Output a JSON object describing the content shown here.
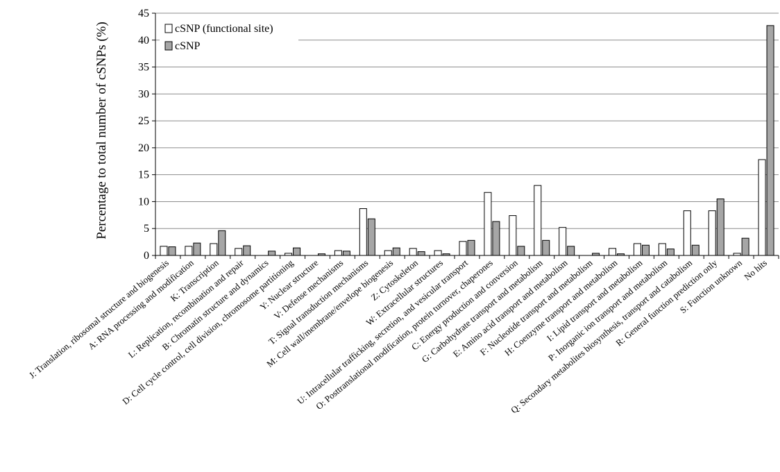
{
  "chart_data": {
    "type": "bar",
    "title": "",
    "xlabel": "",
    "ylabel": "Percentage to total number of cSNPs (%)",
    "ylim": [
      0,
      45
    ],
    "yticks": [
      0,
      5,
      10,
      15,
      20,
      25,
      30,
      35,
      40,
      45
    ],
    "grid": true,
    "legend_position": "top-left",
    "categories": [
      "J: Translation, ribosomal structure and biogenesis",
      "A: RNA processing and modification",
      "K: Transcription",
      "L: Replication, recombination and repair",
      "B: Chromatin structure and dynamics",
      "D: Cell cycle control, cell division, chromosome partitioning",
      "Y: Nuclear structure",
      "V: Defense mechanisms",
      "T: Signal transduction mechanisms",
      "M: Cell wall/membrane/envelope biogenesis",
      "Z: Cytoskeleton",
      "W: Extracellular structures",
      "U: Intracellular trafficking, secretion, and vesicular transport",
      "O: Posttranslational modification, protein turnover, chaperones",
      "C: Energy production and conversion",
      "G: Carbohydrate transport and metabolism",
      "E: Amino acid transport and metabolism",
      "F: Nucleotide transport and metabolism",
      "H: Coenzyme transport and metabolism",
      "I: Lipid transport and metabolism",
      "P: Inorganic ion transport and metabolism",
      "Q: Secondary metabolites biosynthesis, transport and catabolism",
      "R: General function prediction only",
      "S: Function unknown",
      "No hits"
    ],
    "series": [
      {
        "name": "cSNP (functional site)",
        "color": "#ffffff",
        "values": [
          1.7,
          1.7,
          2.2,
          1.3,
          0,
          0.4,
          0,
          0.9,
          8.7,
          0.9,
          1.3,
          0.9,
          2.6,
          11.7,
          7.4,
          13.0,
          5.2,
          0,
          1.3,
          2.2,
          2.2,
          8.3,
          8.3,
          0.4,
          17.8
        ]
      },
      {
        "name": "cSNP",
        "color": "#a6a6a6",
        "values": [
          1.6,
          2.3,
          4.6,
          1.8,
          0.8,
          1.4,
          0.3,
          0.8,
          6.8,
          1.4,
          0.7,
          0.3,
          2.8,
          6.3,
          1.7,
          2.8,
          1.7,
          0.4,
          0.3,
          1.9,
          1.2,
          1.9,
          10.5,
          3.2,
          42.7
        ]
      }
    ]
  }
}
